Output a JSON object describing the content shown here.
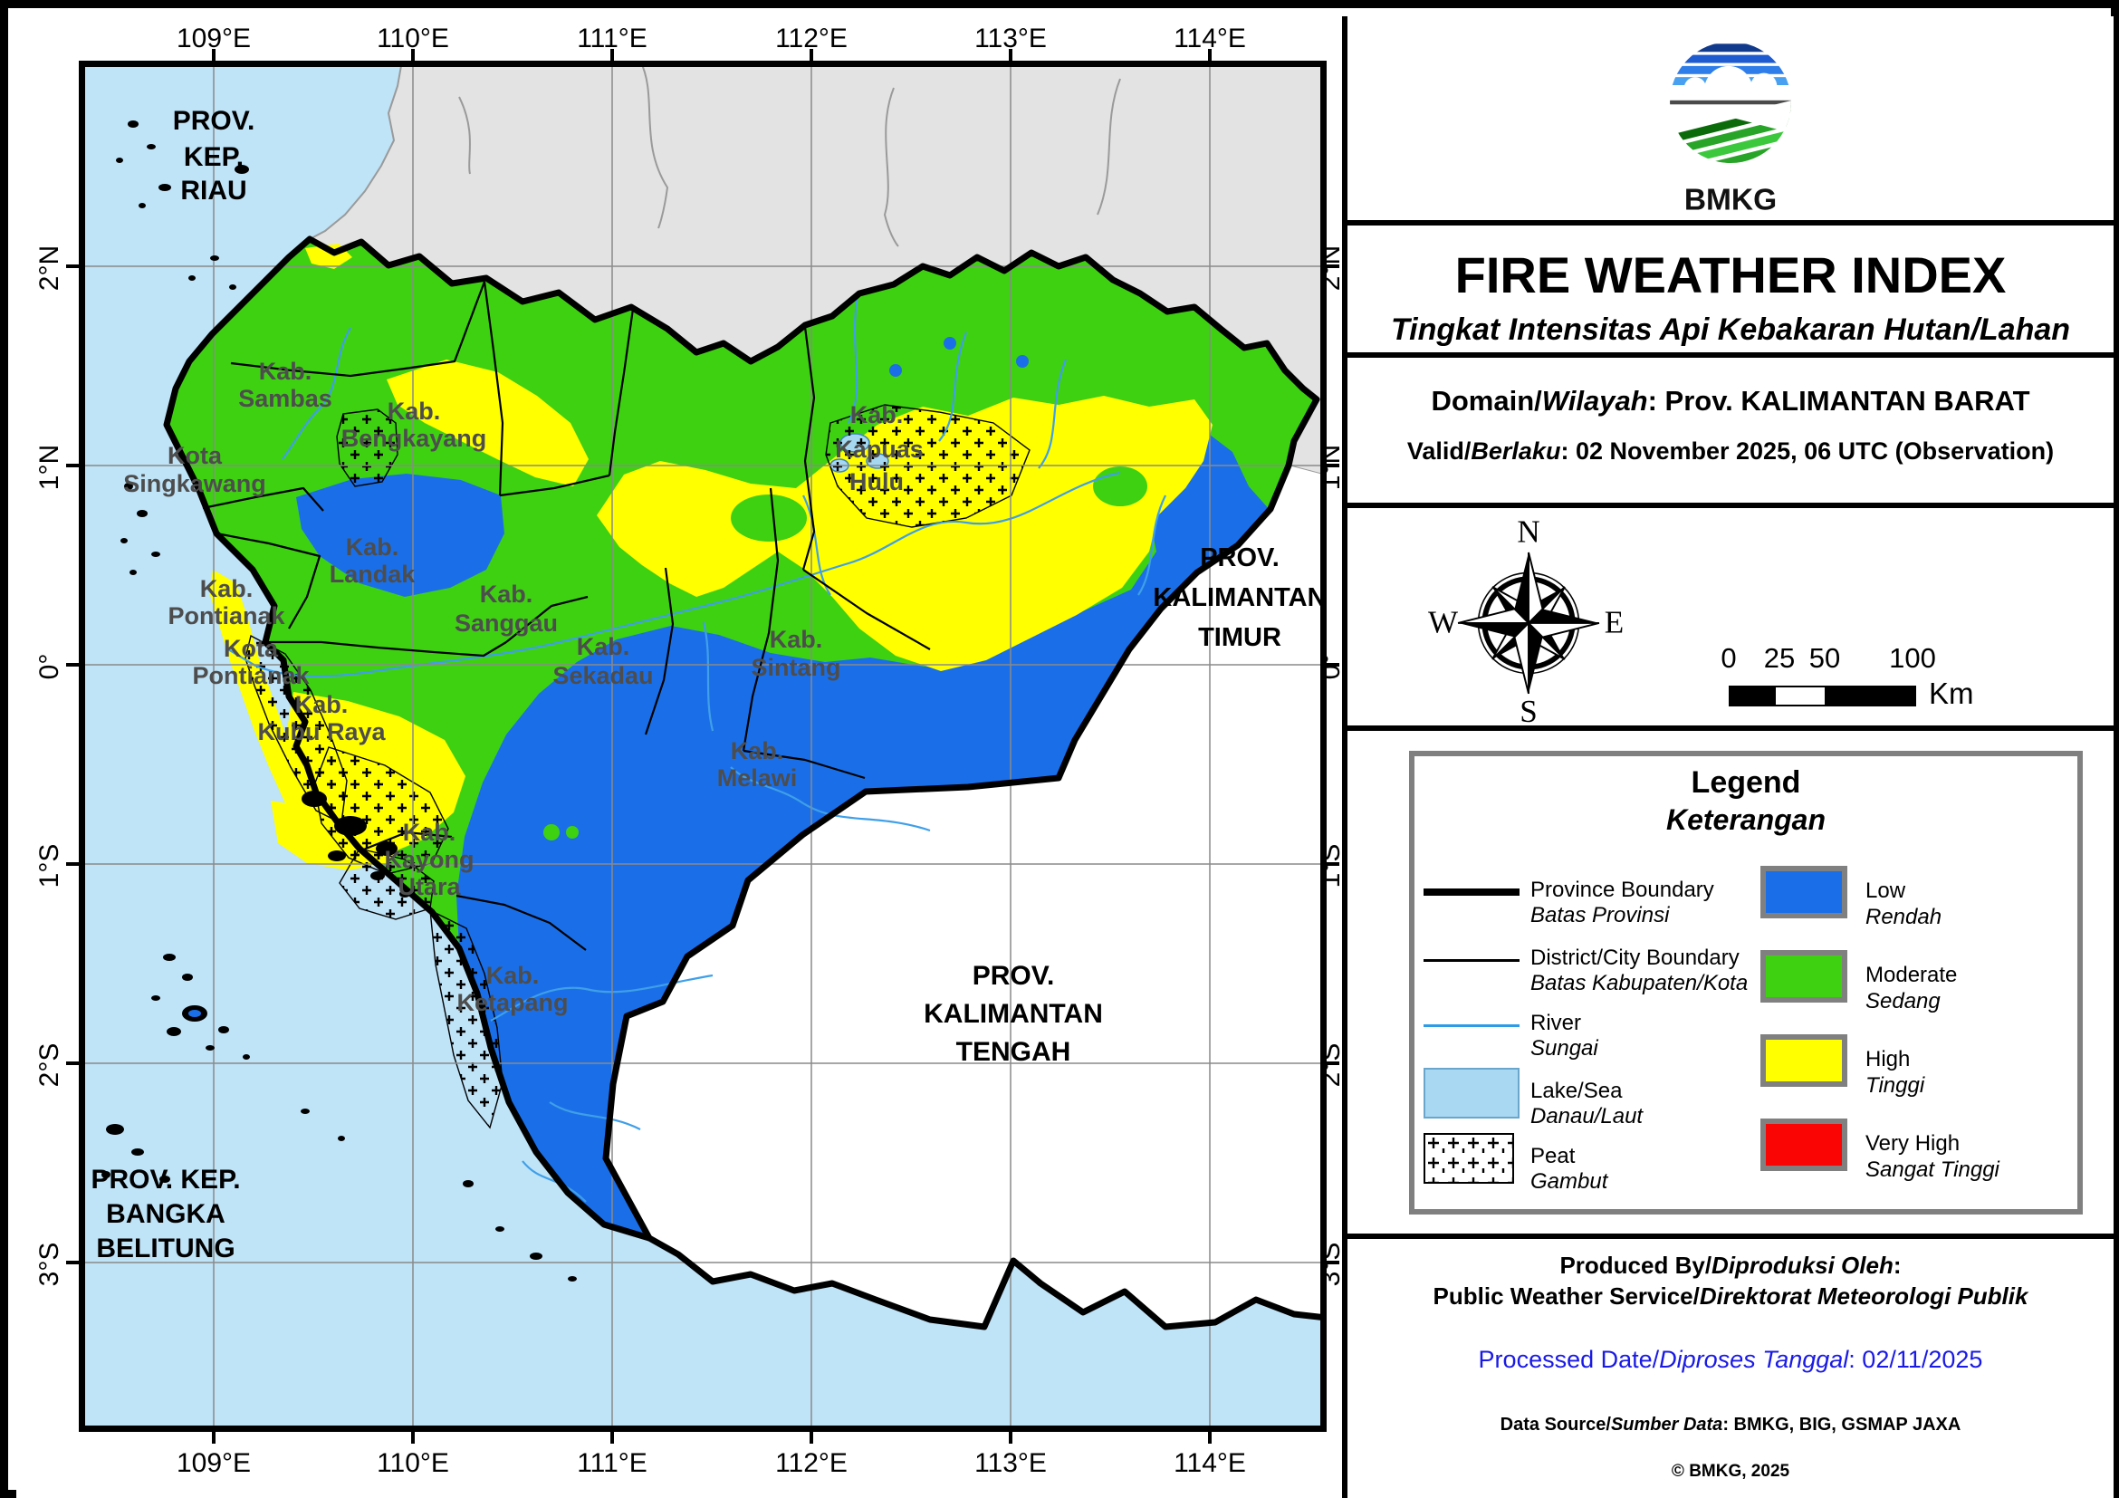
{
  "logo": {
    "text": "BMKG"
  },
  "title_block": {
    "title": "FIRE WEATHER INDEX",
    "subtitle": "Tingkat Intensitas Api Kebakaran Hutan/Lahan"
  },
  "info_block": {
    "domain_prefix": "Domain/",
    "domain_prefix_italic": "Wilayah",
    "domain_rest": ": Prov. KALIMANTAN BARAT",
    "valid_prefix": "Valid/",
    "valid_prefix_italic": "Berlaku",
    "valid_rest": ": 02 November 2025, 06 UTC (Observation)"
  },
  "compass": {
    "north": "N",
    "east": "E",
    "south": "S",
    "west": "W"
  },
  "scale_bar": {
    "tick_0": "0",
    "tick_25": "25",
    "tick_50": "50",
    "tick_100": "100",
    "unit": "Km"
  },
  "legend": {
    "title": "Legend",
    "subtitle": "Keterangan",
    "symbol_items": [
      {
        "en": "Province Boundary",
        "id": "Batas Provinsi",
        "symbol": "thick-line"
      },
      {
        "en": "District/City Boundary",
        "id": "Batas Kabupaten/Kota",
        "symbol": "thin-line"
      },
      {
        "en": "River",
        "id": "Sungai",
        "symbol": "river-line",
        "color": "#2e9be6"
      },
      {
        "en": "Lake/Sea",
        "id": "Danau/Laut",
        "symbol": "lake-swatch",
        "color": "#a9d8f3"
      },
      {
        "en": "Peat",
        "id": "Gambut",
        "symbol": "peat-swatch"
      }
    ],
    "class_items": [
      {
        "en": "Low",
        "id": "Rendah",
        "color": "#1a6fe8"
      },
      {
        "en": "Moderate",
        "id": "Sedang",
        "color": "#3ed111"
      },
      {
        "en": "High",
        "id": "Tinggi",
        "color": "#ffff00"
      },
      {
        "en": "Very High",
        "id": "Sangat Tinggi",
        "color": "#fb0404"
      }
    ]
  },
  "footer": {
    "produced_line1_a": "Produced By/",
    "produced_line1_b": "Diproduksi Oleh",
    "produced_line1_c": ":",
    "produced_line2_a": "Public Weather Service/",
    "produced_line2_b": "Direktorat Meteorologi Publik",
    "processed_a": "Processed Date/",
    "processed_b": "Diproses Tanggal",
    "processed_c": ": 02/11/2025",
    "datasource_a": "Data Source/",
    "datasource_b": "Sumber Data",
    "datasource_c": ": BMKG, BIG, GSMAP JAXA",
    "copyright": "© BMKG, 2025"
  },
  "map": {
    "axis": {
      "lon": [
        "109°E",
        "110°E",
        "111°E",
        "112°E",
        "113°E",
        "114°E"
      ],
      "lat": [
        "2°N",
        "1°N",
        "0°",
        "1°S",
        "2°S",
        "3°S"
      ]
    },
    "province_labels": {
      "riau": [
        "PROV.",
        "KEP.",
        "RIAU"
      ],
      "kaltim": [
        "PROV.",
        "KALIMANTAN",
        "TIMUR"
      ],
      "kalteng": [
        "PROV.",
        "KALIMANTAN",
        "TENGAH"
      ],
      "bangka": [
        "PROV. KEP.",
        "BANGKA",
        "BELITUNG"
      ]
    },
    "district_labels": {
      "sambas": [
        "Kab.",
        "Sambas"
      ],
      "bengkayang": [
        "Kab.",
        "Bengkayang"
      ],
      "singkawang": [
        "Kota",
        "Singkawang"
      ],
      "landak": [
        "Kab.",
        "Landak"
      ],
      "pontianak_kab": [
        "Kab.",
        "Pontianak"
      ],
      "pontianak_kota": [
        "Kota",
        "Pontianak"
      ],
      "kubu_raya": [
        "Kab.",
        "Kubu Raya"
      ],
      "sanggau": [
        "Kab.",
        "Sanggau"
      ],
      "sekadau": [
        "Kab.",
        "Sekadau"
      ],
      "sintang": [
        "Kab.",
        "Sintang"
      ],
      "melawi": [
        "Kab.",
        "Melawi"
      ],
      "kayong_utara": [
        "Kab.",
        "Kayong",
        "Utara"
      ],
      "ketapang": [
        "Kab.",
        "Ketapang"
      ],
      "kapuas_hulu": [
        "Kab.",
        "Kapuas",
        "Hulu"
      ]
    }
  },
  "colors": {
    "sea": "#bfe3f7",
    "low": "#1a6fe8",
    "moderate": "#3ed111",
    "high": "#ffff00",
    "very_high": "#fb0404",
    "outside_province_north": "#e3e3e3",
    "outside_province_east": "#ffffff",
    "river": "#3f9fe8",
    "lake": "#a5d7f0",
    "district_label_text": "#4d4d4d",
    "processed_date_text": "#1a1ae6"
  }
}
